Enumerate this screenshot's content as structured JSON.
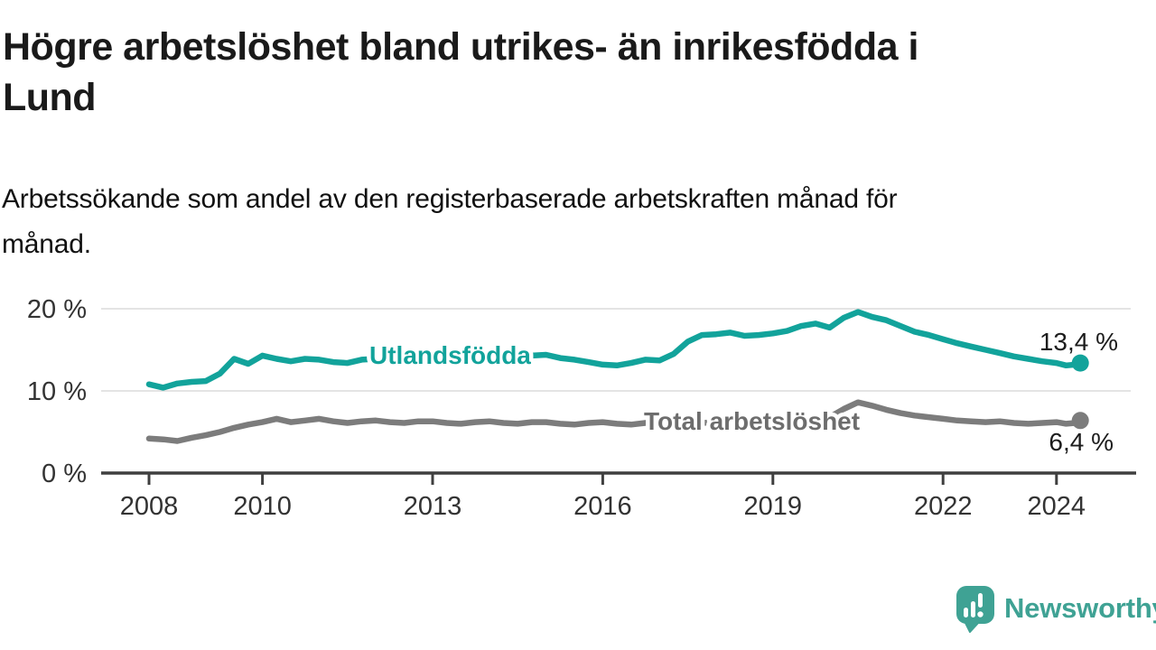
{
  "header": {
    "title": "Högre arbetslöshet bland utrikes- än inrikesfödda i\nLund",
    "subtitle": "Arbetssökande som andel av den registerbaserade arbetskraften månad för\nmånad."
  },
  "branding": {
    "name": "Newsworthy",
    "logo_icon": "chart-speech-bubble-icon",
    "color": "#3fa294"
  },
  "chart_data": {
    "type": "line",
    "unit": "%",
    "grid": true,
    "x_axis": {
      "range_years": [
        2007.2,
        2025.4
      ]
    },
    "y_axis": {
      "range_percent": [
        0,
        22
      ]
    },
    "x_ticks": [
      {
        "value": 2008,
        "label": "2008"
      },
      {
        "value": 2010,
        "label": "2010"
      },
      {
        "value": 2013,
        "label": "2013"
      },
      {
        "value": 2016,
        "label": "2016"
      },
      {
        "value": 2019,
        "label": "2019"
      },
      {
        "value": 2022,
        "label": "2022"
      },
      {
        "value": 2024,
        "label": "2024"
      }
    ],
    "y_ticks": [
      {
        "value": 0,
        "label": "0 %"
      },
      {
        "value": 10,
        "label": "10 %"
      },
      {
        "value": 20,
        "label": "20 %"
      }
    ],
    "series": [
      {
        "name": "Utlandsfödda",
        "color": "#12a39b",
        "label_color": "#12a39b",
        "end_label": "13,4 %",
        "end_value": 13.4,
        "points": [
          [
            2008,
            10.8
          ],
          [
            2008.25,
            10.4
          ],
          [
            2008.5,
            10.9
          ],
          [
            2008.75,
            11.1
          ],
          [
            2009,
            11.2
          ],
          [
            2009.25,
            12.1
          ],
          [
            2009.5,
            13.9
          ],
          [
            2009.75,
            13.3
          ],
          [
            2010,
            14.3
          ],
          [
            2010.25,
            13.9
          ],
          [
            2010.5,
            13.6
          ],
          [
            2010.75,
            13.9
          ],
          [
            2011,
            13.8
          ],
          [
            2011.25,
            13.5
          ],
          [
            2011.5,
            13.4
          ],
          [
            2011.75,
            13.8
          ],
          [
            2012,
            13.9
          ],
          [
            2012.25,
            13.6
          ],
          [
            2012.5,
            13.5
          ],
          [
            2012.75,
            13.8
          ],
          [
            2013,
            13.9
          ],
          [
            2013.25,
            13.7
          ],
          [
            2013.5,
            13.6
          ],
          [
            2013.75,
            13.9
          ],
          [
            2014,
            14.0
          ],
          [
            2014.25,
            13.8
          ],
          [
            2014.5,
            14.1
          ],
          [
            2014.75,
            14.3
          ],
          [
            2015,
            14.4
          ],
          [
            2015.25,
            14.0
          ],
          [
            2015.5,
            13.8
          ],
          [
            2015.75,
            13.5
          ],
          [
            2016,
            13.2
          ],
          [
            2016.25,
            13.1
          ],
          [
            2016.5,
            13.4
          ],
          [
            2016.75,
            13.8
          ],
          [
            2017,
            13.7
          ],
          [
            2017.25,
            14.5
          ],
          [
            2017.5,
            16.0
          ],
          [
            2017.75,
            16.8
          ],
          [
            2018,
            16.9
          ],
          [
            2018.25,
            17.1
          ],
          [
            2018.5,
            16.7
          ],
          [
            2018.75,
            16.8
          ],
          [
            2019,
            17.0
          ],
          [
            2019.25,
            17.3
          ],
          [
            2019.5,
            17.9
          ],
          [
            2019.75,
            18.2
          ],
          [
            2020,
            17.7
          ],
          [
            2020.25,
            18.9
          ],
          [
            2020.5,
            19.6
          ],
          [
            2020.75,
            19.0
          ],
          [
            2021,
            18.6
          ],
          [
            2021.25,
            17.9
          ],
          [
            2021.5,
            17.2
          ],
          [
            2021.75,
            16.8
          ],
          [
            2022,
            16.3
          ],
          [
            2022.25,
            15.8
          ],
          [
            2022.5,
            15.4
          ],
          [
            2022.75,
            15.0
          ],
          [
            2023,
            14.6
          ],
          [
            2023.25,
            14.2
          ],
          [
            2023.5,
            13.9
          ],
          [
            2023.75,
            13.6
          ],
          [
            2024,
            13.4
          ],
          [
            2024.17,
            13.1
          ],
          [
            2024.33,
            13.2
          ],
          [
            2024.42,
            13.4
          ]
        ]
      },
      {
        "name": "Total arbetslöshet",
        "color": "#7c7c7c",
        "label_color": "#6d6d6d",
        "end_label": "6,4 %",
        "end_value": 6.4,
        "points": [
          [
            2008,
            4.2
          ],
          [
            2008.25,
            4.1
          ],
          [
            2008.5,
            3.9
          ],
          [
            2008.75,
            4.3
          ],
          [
            2009,
            4.6
          ],
          [
            2009.25,
            5.0
          ],
          [
            2009.5,
            5.5
          ],
          [
            2009.75,
            5.9
          ],
          [
            2010,
            6.2
          ],
          [
            2010.25,
            6.6
          ],
          [
            2010.5,
            6.2
          ],
          [
            2010.75,
            6.4
          ],
          [
            2011,
            6.6
          ],
          [
            2011.25,
            6.3
          ],
          [
            2011.5,
            6.1
          ],
          [
            2011.75,
            6.3
          ],
          [
            2012,
            6.4
          ],
          [
            2012.25,
            6.2
          ],
          [
            2012.5,
            6.1
          ],
          [
            2012.75,
            6.3
          ],
          [
            2013,
            6.3
          ],
          [
            2013.25,
            6.1
          ],
          [
            2013.5,
            6.0
          ],
          [
            2013.75,
            6.2
          ],
          [
            2014,
            6.3
          ],
          [
            2014.25,
            6.1
          ],
          [
            2014.5,
            6.0
          ],
          [
            2014.75,
            6.2
          ],
          [
            2015,
            6.2
          ],
          [
            2015.25,
            6.0
          ],
          [
            2015.5,
            5.9
          ],
          [
            2015.75,
            6.1
          ],
          [
            2016,
            6.2
          ],
          [
            2016.25,
            6.0
          ],
          [
            2016.5,
            5.9
          ],
          [
            2016.75,
            6.1
          ],
          [
            2017,
            6.2
          ],
          [
            2017.25,
            6.0
          ],
          [
            2017.5,
            5.9
          ],
          [
            2017.75,
            6.1
          ],
          [
            2018,
            6.2
          ],
          [
            2018.25,
            6.0
          ],
          [
            2018.5,
            6.1
          ],
          [
            2018.75,
            6.2
          ],
          [
            2019,
            6.3
          ],
          [
            2019.25,
            6.2
          ],
          [
            2019.5,
            6.4
          ],
          [
            2019.75,
            6.5
          ],
          [
            2020,
            6.8
          ],
          [
            2020.25,
            7.8
          ],
          [
            2020.5,
            8.6
          ],
          [
            2020.75,
            8.2
          ],
          [
            2021,
            7.7
          ],
          [
            2021.25,
            7.3
          ],
          [
            2021.5,
            7.0
          ],
          [
            2021.75,
            6.8
          ],
          [
            2022,
            6.6
          ],
          [
            2022.25,
            6.4
          ],
          [
            2022.5,
            6.3
          ],
          [
            2022.75,
            6.2
          ],
          [
            2023,
            6.3
          ],
          [
            2023.25,
            6.1
          ],
          [
            2023.5,
            6.0
          ],
          [
            2023.75,
            6.1
          ],
          [
            2024,
            6.2
          ],
          [
            2024.17,
            6.0
          ],
          [
            2024.33,
            6.1
          ],
          [
            2024.42,
            6.4
          ]
        ]
      }
    ]
  }
}
